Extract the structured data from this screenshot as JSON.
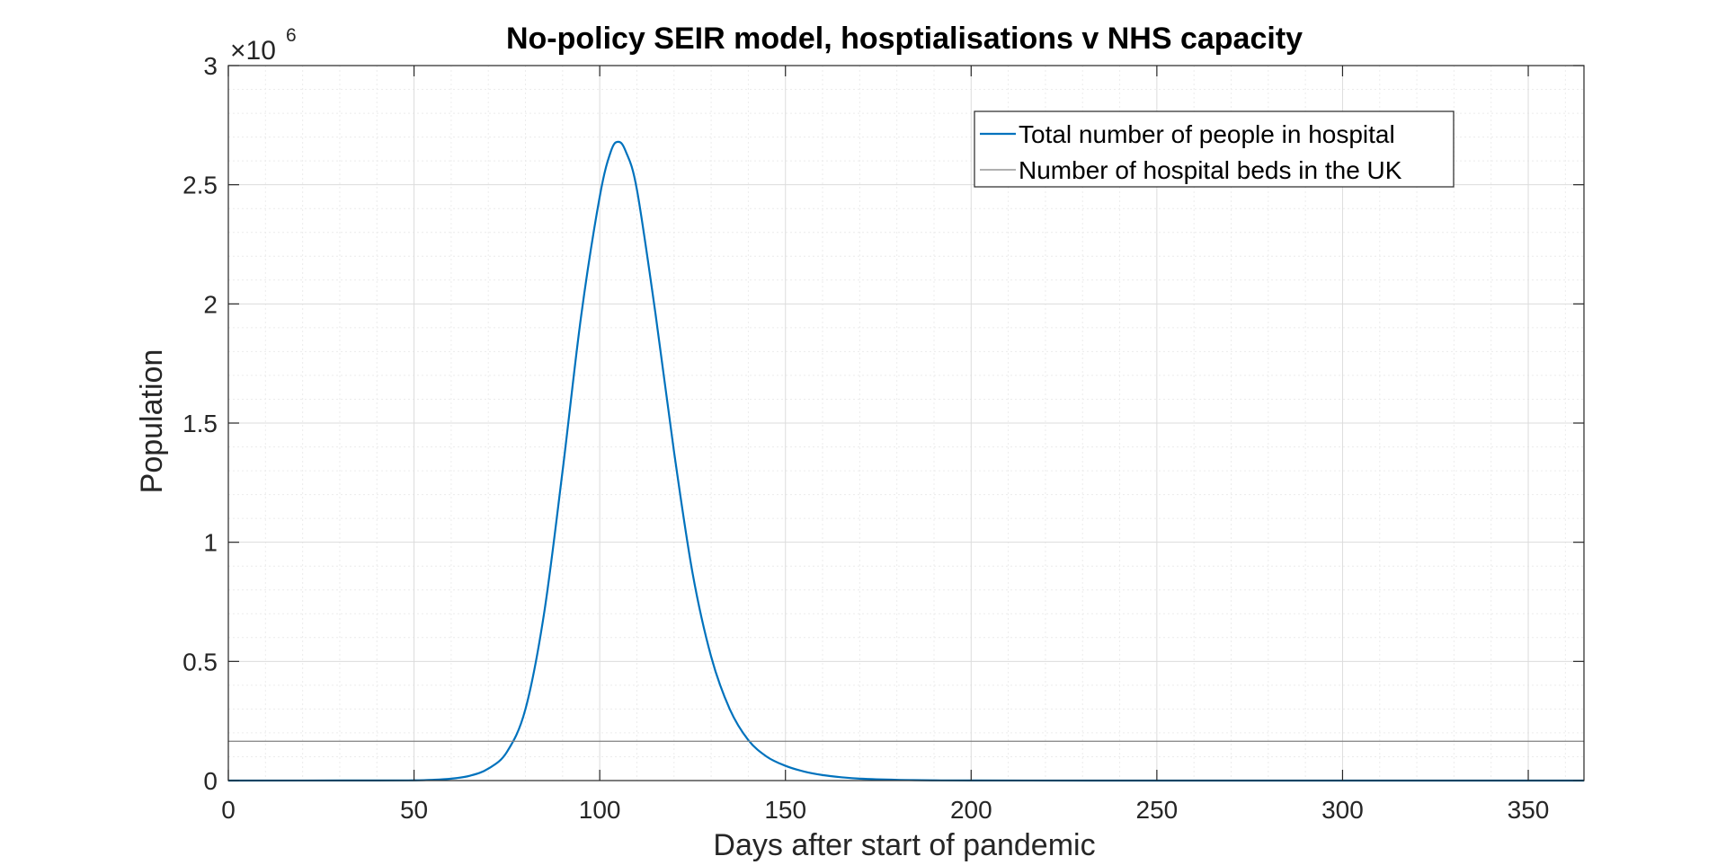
{
  "chart_data": {
    "type": "line",
    "title": "No-policy SEIR model, hosptialisations v NHS capacity",
    "xlabel": "Days after start of pandemic",
    "ylabel": "Population",
    "y_multiplier": {
      "base": "×10",
      "exponent": "6"
    },
    "xlim": [
      0,
      365
    ],
    "ylim": [
      0,
      3
    ],
    "x_ticks": [
      0,
      50,
      100,
      150,
      200,
      250,
      300,
      350
    ],
    "y_ticks": [
      0,
      0.5,
      1,
      1.5,
      2,
      2.5,
      3
    ],
    "x_tick_labels": [
      "0",
      "50",
      "100",
      "150",
      "200",
      "250",
      "300",
      "350"
    ],
    "y_tick_labels": [
      "0",
      "0.5",
      "1",
      "1.5",
      "2",
      "2.5",
      "3"
    ],
    "grid": true,
    "minor_grid": true,
    "legend_position": "top-right",
    "series": [
      {
        "name": "Total number of people in hospital",
        "color": "#0072BD",
        "x": [
          0,
          40,
          50,
          55,
          60,
          65,
          70,
          75,
          80,
          85,
          90,
          95,
          100,
          103,
          105,
          107,
          110,
          115,
          120,
          125,
          130,
          135,
          140,
          145,
          150,
          155,
          160,
          165,
          170,
          180,
          190,
          200,
          250,
          300,
          365
        ],
        "y": [
          0,
          0.0005,
          0.001,
          0.003,
          0.008,
          0.02,
          0.05,
          0.12,
          0.3,
          0.7,
          1.3,
          1.95,
          2.45,
          2.64,
          2.68,
          2.64,
          2.48,
          1.96,
          1.38,
          0.87,
          0.52,
          0.3,
          0.17,
          0.1,
          0.062,
          0.038,
          0.023,
          0.014,
          0.008,
          0.003,
          0.001,
          0.0004,
          0,
          0,
          0
        ]
      },
      {
        "name": "Number of hospital beds in the UK",
        "color": "#808080",
        "x": [
          0,
          365
        ],
        "y": [
          0.165,
          0.165
        ]
      }
    ]
  }
}
